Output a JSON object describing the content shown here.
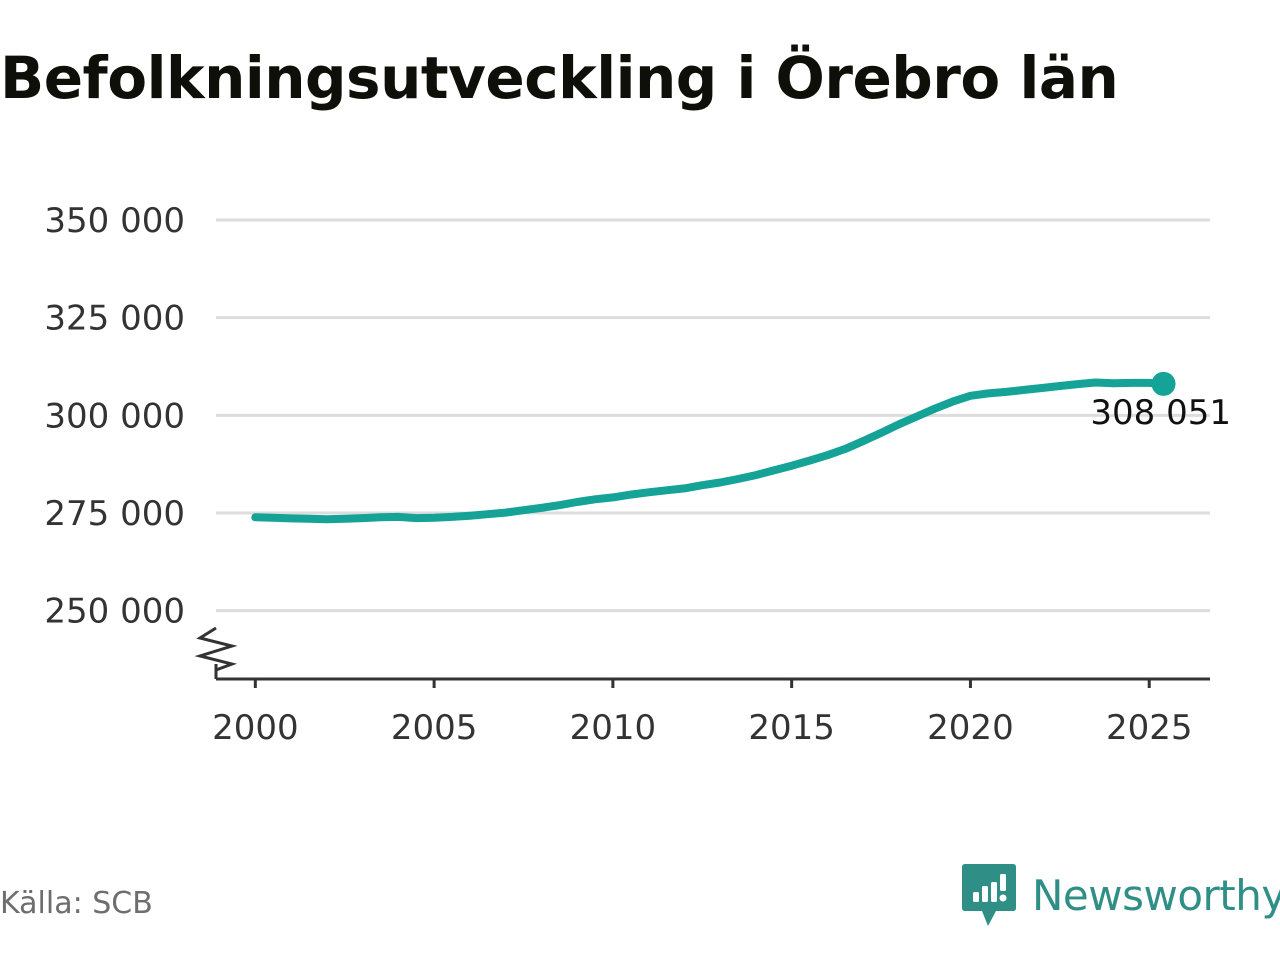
{
  "title": "Befolkningsutveckling i Örebro län",
  "source": "Källa: SCB",
  "brand": {
    "name": "Newsworthy",
    "icon": "bar-chart-speech-bubble-icon",
    "color": "#2f8f86"
  },
  "colors": {
    "line": "#14a396",
    "grid": "#dddddd",
    "axis": "#333333"
  },
  "chart_data": {
    "type": "line",
    "title": "Befolkningsutveckling i Örebro län",
    "xlabel": "",
    "ylabel": "",
    "ylim": [
      232500,
      350000
    ],
    "xlim": [
      1998.9,
      2026.7
    ],
    "yticks": [
      250000,
      275000,
      300000,
      325000,
      350000
    ],
    "ytick_labels": [
      "250 000",
      "275 000",
      "300 000",
      "325 000",
      "350 000"
    ],
    "xticks": [
      2000,
      2005,
      2010,
      2015,
      2020,
      2025
    ],
    "xtick_labels": [
      "2000",
      "2005",
      "2010",
      "2015",
      "2020",
      "2025"
    ],
    "axis_break": true,
    "grid": true,
    "last_value_label": "308 051",
    "series": [
      {
        "x": [
          2000.0,
          2000.5,
          2001.0,
          2001.5,
          2002.0,
          2002.5,
          2003.0,
          2003.5,
          2004.0,
          2004.5,
          2005.0,
          2005.5,
          2006.0,
          2006.5,
          2007.0,
          2007.5,
          2008.0,
          2008.5,
          2009.0,
          2009.5,
          2010.0,
          2010.5,
          2011.0,
          2011.5,
          2012.0,
          2012.5,
          2013.0,
          2013.5,
          2014.0,
          2014.5,
          2015.0,
          2015.5,
          2016.0,
          2016.5,
          2017.0,
          2017.5,
          2018.0,
          2018.5,
          2019.0,
          2019.5,
          2020.0,
          2020.5,
          2021.0,
          2021.5,
          2022.0,
          2022.5,
          2023.0,
          2023.5,
          2024.0,
          2024.5,
          2025.0,
          2025.4
        ],
        "y": [
          273900,
          273800,
          273600,
          273500,
          273400,
          273500,
          273700,
          273900,
          274000,
          273700,
          273800,
          274000,
          274300,
          274700,
          275100,
          275700,
          276300,
          277000,
          277800,
          278500,
          279000,
          279700,
          280300,
          280800,
          281300,
          282100,
          282800,
          283700,
          284700,
          285900,
          287100,
          288400,
          289800,
          291400,
          293400,
          295500,
          297700,
          299700,
          301700,
          303500,
          305000,
          305600,
          306000,
          306500,
          307000,
          307500,
          308000,
          308400,
          308200,
          308300,
          308300,
          308051
        ]
      }
    ]
  }
}
